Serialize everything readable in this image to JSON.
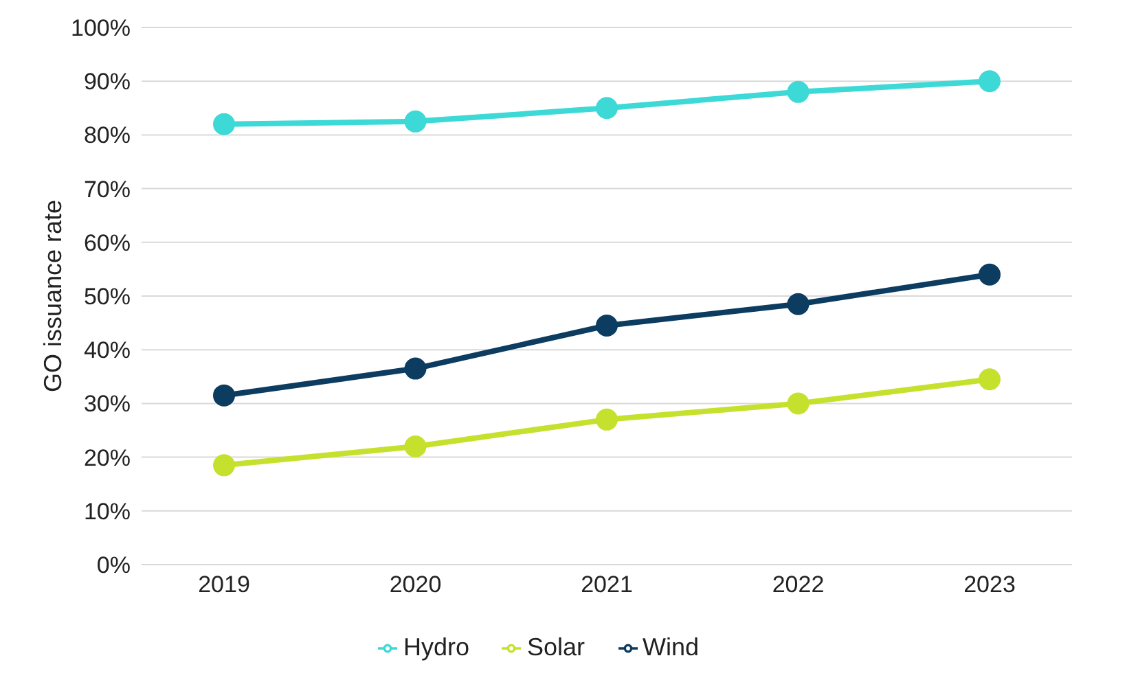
{
  "chart_data": {
    "type": "line",
    "ylabel": "GO issuance rate",
    "categories": [
      "2019",
      "2020",
      "2021",
      "2022",
      "2023"
    ],
    "series": [
      {
        "name": "Hydro",
        "color": "#3dd9d6",
        "values": [
          82,
          82.5,
          85,
          88,
          90
        ]
      },
      {
        "name": "Wind",
        "color": "#0c3c60",
        "values": [
          31.5,
          36.5,
          44.5,
          48.5,
          54
        ]
      },
      {
        "name": "Solar",
        "color": "#c6e12d",
        "values": [
          18.5,
          22,
          27,
          30,
          34.5
        ]
      }
    ],
    "ylim": [
      0,
      100
    ],
    "yticks": [
      {
        "value": 0,
        "label": "0%"
      },
      {
        "value": 10,
        "label": "10%"
      },
      {
        "value": 20,
        "label": "20%"
      },
      {
        "value": 30,
        "label": "30%"
      },
      {
        "value": 40,
        "label": "40%"
      },
      {
        "value": 50,
        "label": "50%"
      },
      {
        "value": 60,
        "label": "60%"
      },
      {
        "value": 70,
        "label": "70%"
      },
      {
        "value": 80,
        "label": "80%"
      },
      {
        "value": 90,
        "label": "90%"
      },
      {
        "value": 100,
        "label": "100%"
      }
    ],
    "grid": "y",
    "legend": "bottom",
    "marker": "circle",
    "line_style": "solid"
  }
}
